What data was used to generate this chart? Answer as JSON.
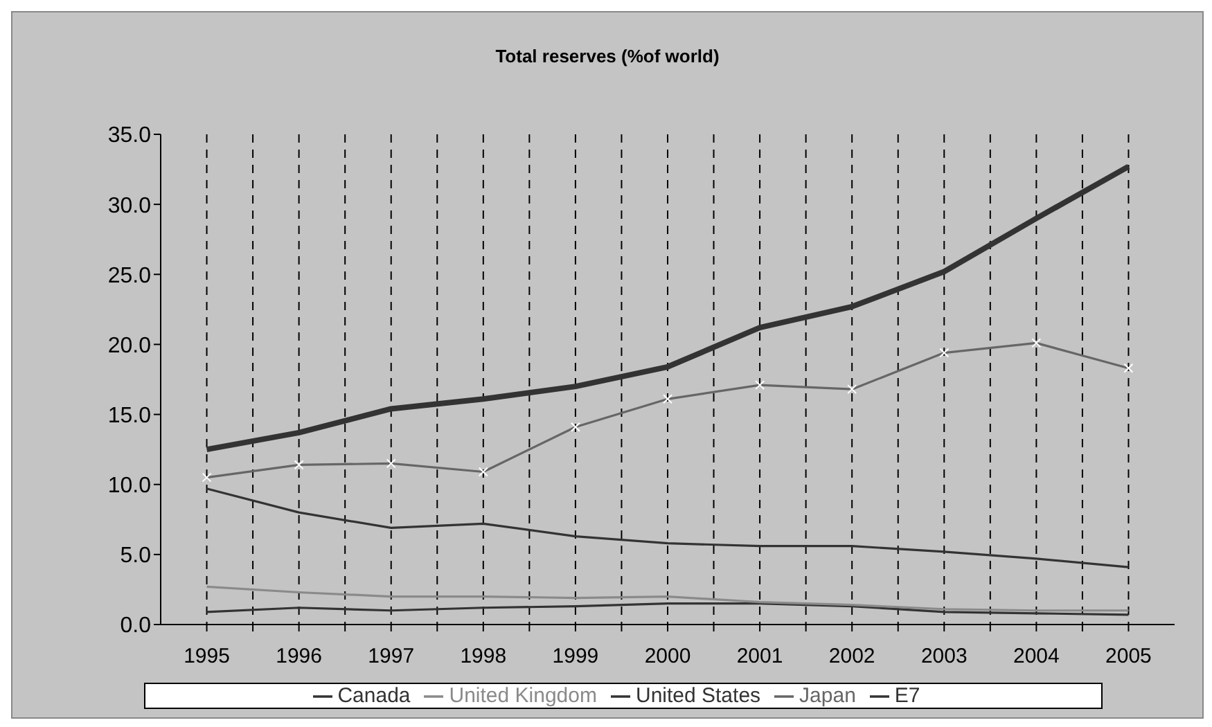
{
  "chart_data": {
    "type": "line",
    "title": "Total reserves (%of world)",
    "x": [
      1995,
      1996,
      1997,
      1998,
      1999,
      2000,
      2001,
      2002,
      2003,
      2004,
      2005
    ],
    "xlim": [
      1994.5,
      2005.5
    ],
    "xticks": [
      1995,
      {
        "value": 1995.5,
        "label": null
      },
      1996,
      {
        "value": 1996.5,
        "label": null
      },
      1997,
      {
        "value": 1997.5,
        "label": null
      },
      1998,
      {
        "value": 1998.5,
        "label": null
      },
      1999,
      {
        "value": 1999.5,
        "label": null
      },
      2000,
      {
        "value": 2000.5,
        "label": null
      },
      2001,
      {
        "value": 2001.5,
        "label": null
      },
      2002,
      {
        "value": 2002.5,
        "label": null
      },
      2003,
      {
        "value": 2003.5,
        "label": null
      },
      2004,
      {
        "value": 2004.5,
        "label": null
      },
      2005
    ],
    "ylim": [
      0,
      35
    ],
    "yticks": [
      {
        "value": 0,
        "label": "0.0"
      },
      {
        "value": 5,
        "label": "5.0"
      },
      {
        "value": 10,
        "label": "10.0"
      },
      {
        "value": 15,
        "label": "15.0"
      },
      {
        "value": 20,
        "label": "20.0"
      },
      {
        "value": 25,
        "label": "25.0"
      },
      {
        "value": 30,
        "label": "30.0"
      },
      {
        "value": 35,
        "label": "35.0"
      }
    ],
    "grid": "x",
    "legend": "bottom",
    "marker": "none",
    "line_style": "solid",
    "series": [
      {
        "name": "Canada",
        "color": "#333333",
        "values": [
          0.9,
          1.2,
          1.0,
          1.2,
          1.3,
          1.5,
          1.5,
          1.3,
          0.9,
          0.8,
          0.7
        ]
      },
      {
        "name": "United Kingdom",
        "color": "#8a8a8a",
        "values": [
          2.7,
          2.3,
          2.0,
          2.0,
          1.9,
          2.0,
          1.6,
          1.4,
          1.1,
          1.0,
          1.0
        ]
      },
      {
        "name": "United States",
        "color": "#333333",
        "values": [
          9.7,
          8.0,
          6.9,
          7.2,
          6.3,
          5.8,
          5.6,
          5.6,
          5.2,
          4.7,
          4.1
        ]
      },
      {
        "name": "Japan",
        "color": "#666666",
        "marker": "cross",
        "values": [
          10.5,
          11.4,
          11.5,
          10.9,
          14.1,
          16.1,
          17.1,
          16.8,
          19.4,
          20.1,
          18.3
        ]
      },
      {
        "name": "E7",
        "color": "#333333",
        "values": [
          12.5,
          13.7,
          15.4,
          16.1,
          17.0,
          18.4,
          21.2,
          22.7,
          25.2,
          29.0,
          32.7
        ]
      }
    ]
  }
}
